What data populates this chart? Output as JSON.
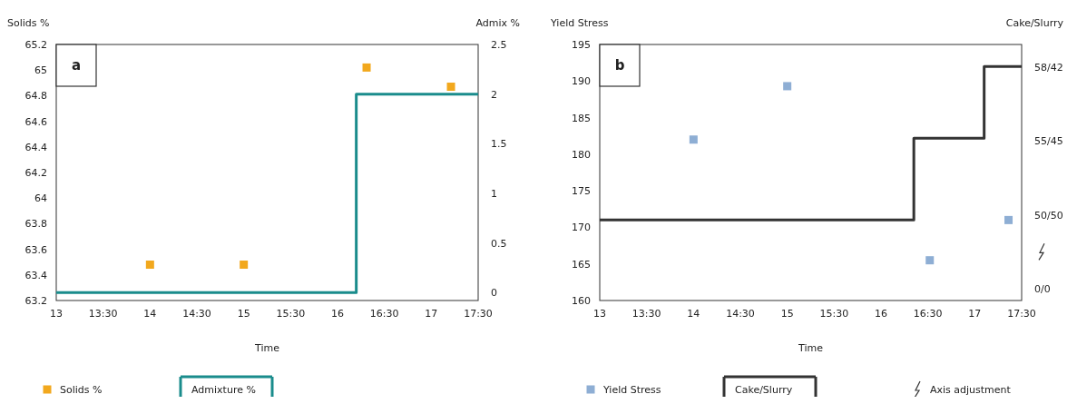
{
  "chart_data": [
    {
      "type": "scatter",
      "title": "a",
      "ylabel": "Solids %",
      "y2label": "Admix %",
      "xlabel": "Time",
      "xlim": [
        13,
        17.5
      ],
      "xticks": [
        13,
        {
          "value": 13.5,
          "label": "13:30"
        },
        14,
        {
          "value": 14.5,
          "label": "14:30"
        },
        15,
        {
          "value": 15.5,
          "label": "15:30"
        },
        16,
        {
          "value": 16.5,
          "label": "16:30"
        },
        17,
        {
          "value": 17.5,
          "label": "17:30"
        }
      ],
      "ylim": [
        63.2,
        65.2
      ],
      "yticks": [
        63.2,
        63.4,
        63.6,
        63.8,
        64,
        64.2,
        64.4,
        64.6,
        64.8,
        65,
        65.2
      ],
      "y2lim": [
        -0.08,
        2.5
      ],
      "y2ticks": [
        0,
        0.5,
        1,
        1.5,
        2,
        2.5
      ],
      "legend": "bottom",
      "grid": false,
      "series": [
        {
          "name": "Solids %",
          "marker": "square",
          "color": "#f2a81d",
          "x": [
            14,
            15,
            16.31,
            17.21
          ],
          "values": [
            63.48,
            63.48,
            65.02,
            64.87
          ]
        },
        {
          "name": "Admixture %",
          "type": "step",
          "axis": "y2",
          "color": "#1a8c8c",
          "x": [
            13,
            16.2,
            17.5
          ],
          "values": [
            0,
            2,
            2
          ]
        }
      ]
    },
    {
      "type": "scatter",
      "title": "b",
      "ylabel": "Yield Stress",
      "y2label": "Cake/Slurry",
      "xlabel": "Time",
      "xlim": [
        13,
        17.5
      ],
      "xticks": [
        13,
        {
          "value": 13.5,
          "label": "13:30"
        },
        14,
        {
          "value": 14.5,
          "label": "14:30"
        },
        15,
        {
          "value": 15.5,
          "label": "15:30"
        },
        16,
        {
          "value": 16.5,
          "label": "16:30"
        },
        17,
        {
          "value": 17.5,
          "label": "17:30"
        }
      ],
      "ylim": [
        160,
        195
      ],
      "yticks": [
        160,
        165,
        170,
        175,
        180,
        185,
        190,
        195
      ],
      "legend": "bottom",
      "grid": false,
      "annotations": [
        "58/42",
        "55/45",
        "50/50",
        "0/0",
        "Axis adjustment"
      ],
      "series": [
        {
          "name": "Yield Stress",
          "marker": "square",
          "color": "#8eaed4",
          "x": [
            14,
            15,
            16.52,
            17.36
          ],
          "values": [
            182,
            189.3,
            165.5,
            171
          ]
        },
        {
          "name": "Cake/Slurry",
          "type": "step",
          "color": "#333333",
          "x": [
            13,
            16.35,
            17.1,
            17.5
          ],
          "values": [
            171,
            182.2,
            192,
            192
          ]
        }
      ]
    }
  ]
}
